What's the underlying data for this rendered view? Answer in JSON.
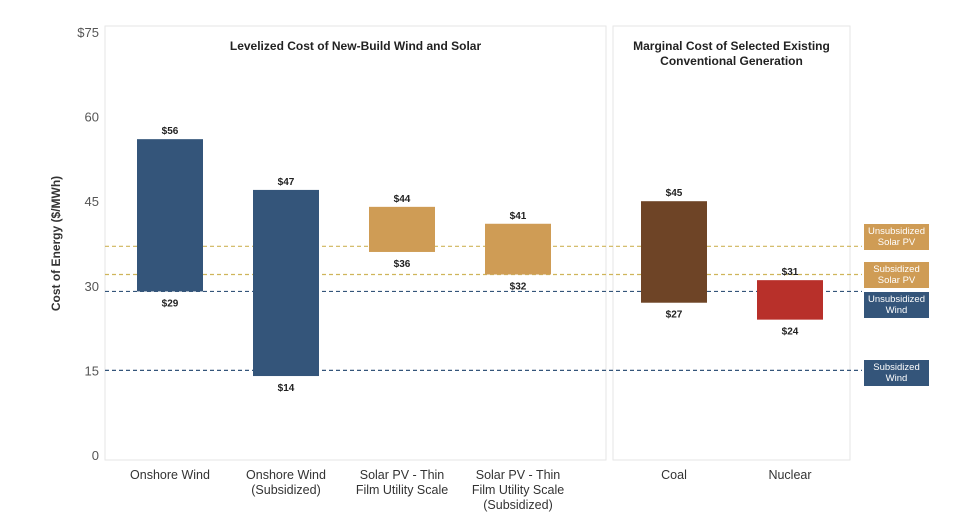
{
  "chart_data": {
    "type": "bar",
    "subtype": "floating-range",
    "ylabel": "Cost of Energy ($/MWh)",
    "ylim": [
      0,
      75
    ],
    "yticks": [
      {
        "value": 0,
        "label": "0"
      },
      {
        "value": 15,
        "label": "15"
      },
      {
        "value": 30,
        "label": "30"
      },
      {
        "value": 45,
        "label": "45"
      },
      {
        "value": 60,
        "label": "60"
      },
      {
        "value": 75,
        "label": "$75"
      }
    ],
    "panels": [
      {
        "title_lines": [
          "Levelized Cost of New-Build Wind and Solar"
        ]
      },
      {
        "title_lines": [
          "Marginal Cost of Selected Existing",
          "Conventional Generation"
        ]
      }
    ],
    "bars": [
      {
        "panel": 0,
        "category_lines": [
          "Onshore Wind"
        ],
        "low": 29,
        "high": 56,
        "low_label": "$29",
        "high_label": "$56",
        "color": "#34557a"
      },
      {
        "panel": 0,
        "category_lines": [
          "Onshore Wind",
          "(Subsidized)"
        ],
        "low": 14,
        "high": 47,
        "low_label": "$14",
        "high_label": "$47",
        "color": "#34557a"
      },
      {
        "panel": 0,
        "category_lines": [
          "Solar PV - Thin",
          "Film Utility Scale"
        ],
        "low": 36,
        "high": 44,
        "low_label": "$36",
        "high_label": "$44",
        "color": "#cf9c55"
      },
      {
        "panel": 0,
        "category_lines": [
          "Solar PV - Thin",
          "Film Utility Scale",
          "(Subsidized)"
        ],
        "low": 32,
        "high": 41,
        "low_label": "$32",
        "high_label": "$41",
        "color": "#cf9c55"
      },
      {
        "panel": 1,
        "category_lines": [
          "Coal"
        ],
        "low": 27,
        "high": 45,
        "low_label": "$27",
        "high_label": "$45",
        "color": "#6e4426"
      },
      {
        "panel": 1,
        "category_lines": [
          "Nuclear"
        ],
        "low": 24,
        "high": 31,
        "low_label": "$24",
        "high_label": "$31",
        "color": "#b8302a"
      }
    ],
    "reference_lines": [
      {
        "value": 37,
        "label_lines": [
          "Unsubsidized",
          "Solar PV"
        ],
        "line_color": "#cfb55a",
        "badge_color": "#cf9c55"
      },
      {
        "value": 32,
        "label_lines": [
          "Subsidized",
          "Solar PV"
        ],
        "line_color": "#cfb55a",
        "badge_color": "#cf9c55"
      },
      {
        "value": 29,
        "label_lines": [
          "Unsubsidized",
          "Wind"
        ],
        "line_color": "#34557a",
        "badge_color": "#34557a"
      },
      {
        "value": 15,
        "label_lines": [
          "Subsidized",
          "Wind"
        ],
        "line_color": "#34557a",
        "badge_color": "#34557a"
      }
    ],
    "grid": false
  }
}
